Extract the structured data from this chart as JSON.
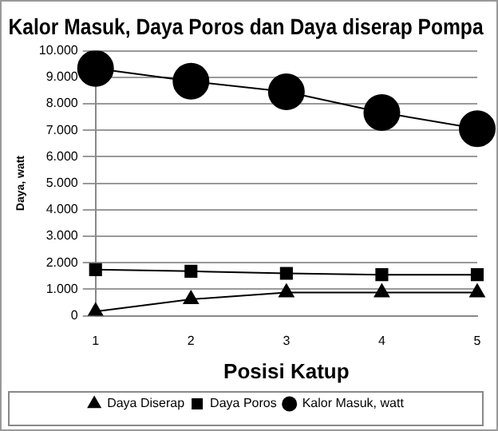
{
  "chart_data": {
    "type": "line",
    "title": "Kalor Masuk, Daya Poros dan Daya diserap Pompa",
    "xlabel": "Posisi Katup",
    "ylabel": "Daya, watt",
    "categories": [
      "1",
      "2",
      "3",
      "4",
      "5"
    ],
    "series": [
      {
        "name": "Daya Diserap",
        "color": "#000000",
        "marker": "triangle",
        "values": [
          160,
          620,
          880,
          880,
          880
        ]
      },
      {
        "name": "Daya Poros",
        "color": "#000000",
        "marker": "square",
        "values": [
          1740,
          1680,
          1600,
          1550,
          1550
        ]
      },
      {
        "name": "Kalor Masuk, watt",
        "color": "#000000",
        "marker": "circle",
        "values": [
          9330,
          8850,
          8450,
          7670,
          7060
        ]
      }
    ],
    "ylim": [
      0,
      10000
    ],
    "yticks": [
      {
        "value": 0,
        "label": "0"
      },
      {
        "value": 1000,
        "label": "1.000"
      },
      {
        "value": 2000,
        "label": "2.000"
      },
      {
        "value": 3000,
        "label": "3.000"
      },
      {
        "value": 4000,
        "label": "4.000"
      },
      {
        "value": 5000,
        "label": "5.000"
      },
      {
        "value": 6000,
        "label": "6.000"
      },
      {
        "value": 7000,
        "label": "7.000"
      },
      {
        "value": 8000,
        "label": "8.000"
      },
      {
        "value": 9000,
        "label": "9.000"
      },
      {
        "value": 10000,
        "label": "10.000"
      }
    ],
    "grid": "y",
    "legend": "bottom"
  }
}
